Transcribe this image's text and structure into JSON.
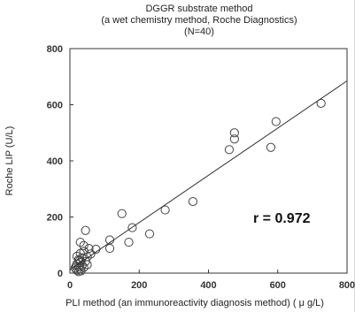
{
  "chart_data": {
    "type": "scatter",
    "title_lines": [
      "DGGR substrate method",
      "(a wet chemistry method, Roche Diagnostics)",
      "(N=40)"
    ],
    "xlabel": "PLI method (an immunoreactivity diagnosis method)  ( μ g/L)",
    "ylabel": "Roche LIP (U/L)",
    "xlim": [
      0,
      800
    ],
    "ylim": [
      0,
      800
    ],
    "x_ticks": [
      "0",
      "200",
      "400",
      "600",
      "800"
    ],
    "y_ticks": [
      "0",
      "200",
      "400",
      "600",
      "800"
    ],
    "grid": false,
    "annotation": "r = 0.972",
    "regression_line": {
      "x": [
        0,
        800
      ],
      "y": [
        12,
        685
      ]
    },
    "points": [
      {
        "x": 725,
        "y": 605
      },
      {
        "x": 595,
        "y": 540
      },
      {
        "x": 580,
        "y": 448
      },
      {
        "x": 475,
        "y": 500
      },
      {
        "x": 475,
        "y": 478
      },
      {
        "x": 460,
        "y": 440
      },
      {
        "x": 355,
        "y": 255
      },
      {
        "x": 275,
        "y": 225
      },
      {
        "x": 150,
        "y": 212
      },
      {
        "x": 180,
        "y": 162
      },
      {
        "x": 170,
        "y": 110
      },
      {
        "x": 230,
        "y": 140
      },
      {
        "x": 115,
        "y": 118
      },
      {
        "x": 115,
        "y": 88
      },
      {
        "x": 45,
        "y": 152
      },
      {
        "x": 30,
        "y": 110
      },
      {
        "x": 40,
        "y": 98
      },
      {
        "x": 55,
        "y": 88
      },
      {
        "x": 75,
        "y": 85
      },
      {
        "x": 40,
        "y": 78
      },
      {
        "x": 30,
        "y": 70
      },
      {
        "x": 60,
        "y": 68
      },
      {
        "x": 50,
        "y": 58
      },
      {
        "x": 35,
        "y": 55
      },
      {
        "x": 25,
        "y": 48
      },
      {
        "x": 45,
        "y": 42
      },
      {
        "x": 30,
        "y": 38
      },
      {
        "x": 20,
        "y": 32
      },
      {
        "x": 35,
        "y": 28
      },
      {
        "x": 25,
        "y": 22
      },
      {
        "x": 30,
        "y": 15
      },
      {
        "x": 20,
        "y": 10
      },
      {
        "x": 25,
        "y": 5
      },
      {
        "x": 15,
        "y": 18
      },
      {
        "x": 40,
        "y": 20
      },
      {
        "x": 20,
        "y": 60
      },
      {
        "x": 50,
        "y": 30
      },
      {
        "x": 28,
        "y": 45
      },
      {
        "x": 18,
        "y": 25
      },
      {
        "x": 32,
        "y": 8
      }
    ]
  }
}
